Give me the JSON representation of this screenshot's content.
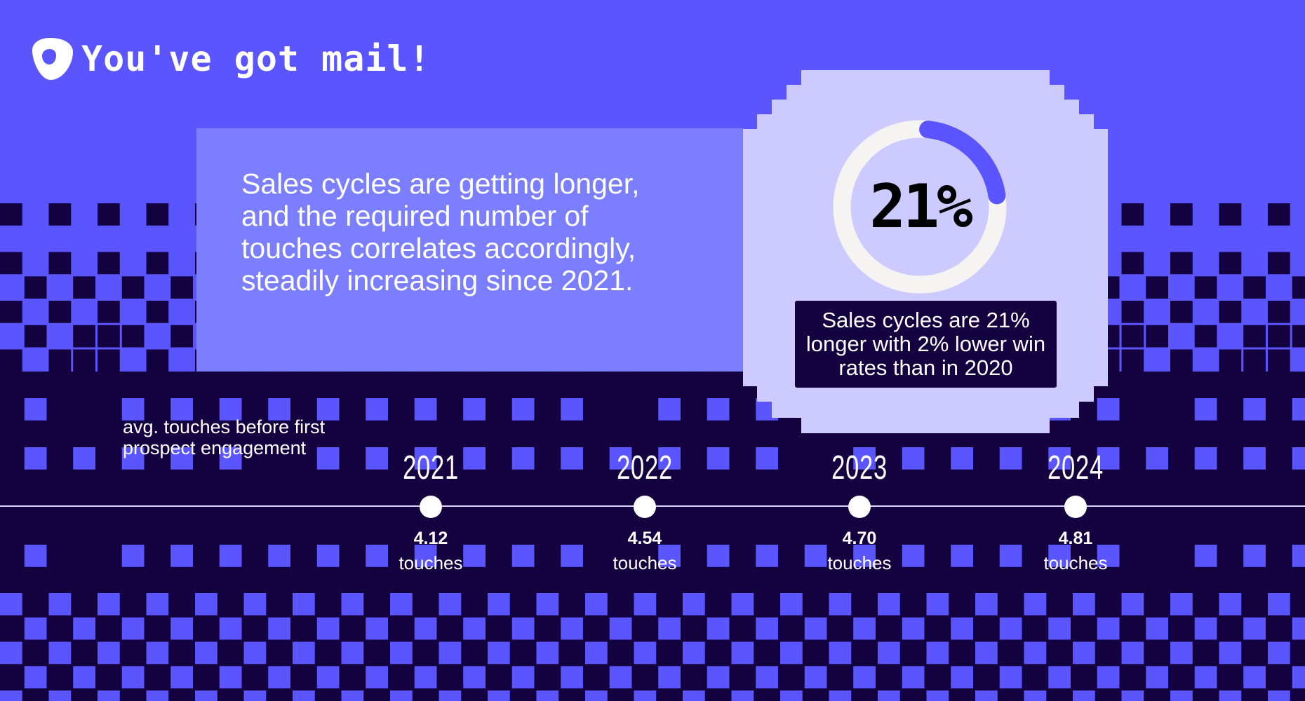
{
  "header": {
    "title": "You've got mail!",
    "logo": "outreach-logo-icon"
  },
  "summary": {
    "text": "Sales cycles are getting longer, and the required number of touches correlates accordingly, steadily increasing since 2021."
  },
  "stat": {
    "value": "21%",
    "progress_percent": 21,
    "note": "Sales cycles are 21% longer with 2% lower win rates than in 2020"
  },
  "chart_data": {
    "type": "timeline",
    "title": "avg. touches before first prospect engagement",
    "categories": [
      "2021",
      "2022",
      "2023",
      "2024"
    ],
    "values": [
      4.12,
      4.54,
      4.7,
      4.81
    ],
    "value_labels": [
      "4.12",
      "4.54",
      "4.70",
      "4.81"
    ],
    "unit": "touches"
  },
  "colors": {
    "background": "#5a55ff",
    "dark": "#14013f",
    "panel": "#7b7fff",
    "badge": "#cdcaff",
    "ring": "#f5f4f2"
  }
}
